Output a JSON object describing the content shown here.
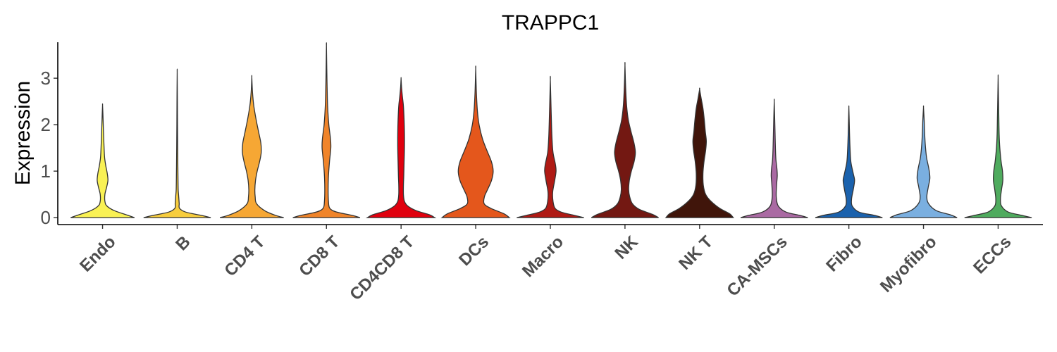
{
  "chart_data": {
    "type": "violin",
    "title": "TRAPPC1",
    "xlabel": "",
    "ylabel": "Expression",
    "ylim": [
      -0.15,
      3.85
    ],
    "yticks": [
      0,
      1,
      2,
      3
    ],
    "grid": false,
    "legend": "none",
    "categories": [
      "Endo",
      "B",
      "CD4 T",
      "CD8 T",
      "CD4CD8 T",
      "DCs",
      "Macro",
      "NK",
      "NK T",
      "CA-MSCs",
      "Fibro",
      "Myofibro",
      "ECCs"
    ],
    "series": [
      {
        "category": "Endo",
        "color": "#F9F154",
        "max": 2.42,
        "profile": [
          [
            0,
            0.95
          ],
          [
            0.05,
            0.75
          ],
          [
            0.15,
            0.35
          ],
          [
            0.25,
            0.13
          ],
          [
            0.35,
            0.07
          ],
          [
            0.5,
            0.07
          ],
          [
            0.65,
            0.12
          ],
          [
            0.8,
            0.16
          ],
          [
            0.95,
            0.14
          ],
          [
            1.1,
            0.1
          ],
          [
            1.3,
            0.06
          ],
          [
            1.6,
            0.04
          ],
          [
            1.9,
            0.025
          ],
          [
            2.2,
            0.012
          ],
          [
            2.42,
            0
          ]
        ]
      },
      {
        "category": "B",
        "color": "#F7CD3E",
        "max": 3.13,
        "profile": [
          [
            0,
            1.0
          ],
          [
            0.05,
            0.7
          ],
          [
            0.12,
            0.25
          ],
          [
            0.2,
            0.07
          ],
          [
            0.3,
            0.06
          ],
          [
            0.4,
            0.05
          ],
          [
            0.5,
            0.04
          ],
          [
            0.6,
            0.03
          ],
          [
            0.8,
            0.025
          ],
          [
            1.1,
            0.02
          ],
          [
            1.5,
            0.015
          ],
          [
            2.0,
            0.01
          ],
          [
            2.6,
            0.006
          ],
          [
            3.13,
            0
          ]
        ]
      },
      {
        "category": "CD4 T",
        "color": "#F6A734",
        "max": 3.02,
        "profile": [
          [
            0,
            0.95
          ],
          [
            0.05,
            0.7
          ],
          [
            0.15,
            0.38
          ],
          [
            0.3,
            0.14
          ],
          [
            0.45,
            0.1
          ],
          [
            0.6,
            0.09
          ],
          [
            0.8,
            0.11
          ],
          [
            1.0,
            0.16
          ],
          [
            1.2,
            0.23
          ],
          [
            1.4,
            0.28
          ],
          [
            1.6,
            0.27
          ],
          [
            1.85,
            0.2
          ],
          [
            2.1,
            0.13
          ],
          [
            2.4,
            0.06
          ],
          [
            2.7,
            0.02
          ],
          [
            3.02,
            0
          ]
        ]
      },
      {
        "category": "CD8 T",
        "color": "#F0842A",
        "max": 3.7,
        "profile": [
          [
            0,
            1.0
          ],
          [
            0.05,
            0.75
          ],
          [
            0.12,
            0.3
          ],
          [
            0.2,
            0.1
          ],
          [
            0.35,
            0.06
          ],
          [
            0.6,
            0.05
          ],
          [
            0.9,
            0.06
          ],
          [
            1.2,
            0.09
          ],
          [
            1.5,
            0.13
          ],
          [
            1.7,
            0.12
          ],
          [
            2.0,
            0.07
          ],
          [
            2.4,
            0.035
          ],
          [
            2.8,
            0.02
          ],
          [
            3.2,
            0.01
          ],
          [
            3.7,
            0
          ]
        ]
      },
      {
        "category": "CD4CD8 T",
        "color": "#E0000E",
        "max": 2.99,
        "profile": [
          [
            0,
            1.0
          ],
          [
            0.06,
            0.85
          ],
          [
            0.15,
            0.45
          ],
          [
            0.25,
            0.2
          ],
          [
            0.35,
            0.1
          ],
          [
            0.5,
            0.07
          ],
          [
            0.7,
            0.07
          ],
          [
            0.9,
            0.08
          ],
          [
            1.2,
            0.09
          ],
          [
            1.5,
            0.1
          ],
          [
            1.8,
            0.1
          ],
          [
            2.1,
            0.09
          ],
          [
            2.4,
            0.07
          ],
          [
            2.6,
            0.04
          ],
          [
            2.8,
            0.015
          ],
          [
            2.99,
            0
          ]
        ]
      },
      {
        "category": "DCs",
        "color": "#E4571C",
        "max": 3.2,
        "profile": [
          [
            0,
            1.0
          ],
          [
            0.08,
            0.85
          ],
          [
            0.2,
            0.45
          ],
          [
            0.3,
            0.25
          ],
          [
            0.45,
            0.26
          ],
          [
            0.6,
            0.35
          ],
          [
            0.8,
            0.47
          ],
          [
            1.0,
            0.52
          ],
          [
            1.2,
            0.47
          ],
          [
            1.45,
            0.33
          ],
          [
            1.7,
            0.2
          ],
          [
            2.0,
            0.1
          ],
          [
            2.3,
            0.05
          ],
          [
            2.7,
            0.02
          ],
          [
            3.2,
            0
          ]
        ]
      },
      {
        "category": "Macro",
        "color": "#AF1A14",
        "max": 2.97,
        "profile": [
          [
            0,
            1.0
          ],
          [
            0.05,
            0.7
          ],
          [
            0.12,
            0.32
          ],
          [
            0.2,
            0.14
          ],
          [
            0.35,
            0.08
          ],
          [
            0.55,
            0.07
          ],
          [
            0.8,
            0.13
          ],
          [
            1.0,
            0.17
          ],
          [
            1.15,
            0.15
          ],
          [
            1.4,
            0.08
          ],
          [
            1.7,
            0.05
          ],
          [
            2.0,
            0.035
          ],
          [
            2.4,
            0.02
          ],
          [
            2.97,
            0
          ]
        ]
      },
      {
        "category": "NK",
        "color": "#731812",
        "max": 3.28,
        "profile": [
          [
            0,
            1.0
          ],
          [
            0.07,
            0.82
          ],
          [
            0.18,
            0.42
          ],
          [
            0.3,
            0.22
          ],
          [
            0.45,
            0.14
          ],
          [
            0.6,
            0.11
          ],
          [
            0.8,
            0.13
          ],
          [
            1.0,
            0.19
          ],
          [
            1.2,
            0.27
          ],
          [
            1.4,
            0.31
          ],
          [
            1.6,
            0.27
          ],
          [
            1.85,
            0.18
          ],
          [
            2.1,
            0.1
          ],
          [
            2.4,
            0.05
          ],
          [
            2.8,
            0.02
          ],
          [
            3.28,
            0
          ]
        ]
      },
      {
        "category": "NK T",
        "color": "#40150A",
        "max": 2.76,
        "profile": [
          [
            0,
            1.0
          ],
          [
            0.08,
            0.9
          ],
          [
            0.2,
            0.6
          ],
          [
            0.35,
            0.34
          ],
          [
            0.5,
            0.18
          ],
          [
            0.7,
            0.11
          ],
          [
            0.95,
            0.1
          ],
          [
            1.2,
            0.13
          ],
          [
            1.45,
            0.18
          ],
          [
            1.65,
            0.2
          ],
          [
            1.85,
            0.17
          ],
          [
            2.1,
            0.14
          ],
          [
            2.35,
            0.1
          ],
          [
            2.55,
            0.05
          ],
          [
            2.76,
            0
          ]
        ]
      },
      {
        "category": "CA-MSCs",
        "color": "#AA6AA3",
        "max": 2.5,
        "profile": [
          [
            0,
            1.0
          ],
          [
            0.05,
            0.75
          ],
          [
            0.12,
            0.35
          ],
          [
            0.25,
            0.12
          ],
          [
            0.45,
            0.06
          ],
          [
            0.7,
            0.07
          ],
          [
            0.9,
            0.09
          ],
          [
            1.05,
            0.08
          ],
          [
            1.25,
            0.05
          ],
          [
            1.5,
            0.035
          ],
          [
            1.8,
            0.025
          ],
          [
            2.1,
            0.015
          ],
          [
            2.5,
            0
          ]
        ]
      },
      {
        "category": "Fibro",
        "color": "#1B62AD",
        "max": 2.37,
        "profile": [
          [
            0,
            1.0
          ],
          [
            0.05,
            0.75
          ],
          [
            0.12,
            0.3
          ],
          [
            0.25,
            0.1
          ],
          [
            0.4,
            0.08
          ],
          [
            0.6,
            0.13
          ],
          [
            0.8,
            0.17
          ],
          [
            0.95,
            0.13
          ],
          [
            1.2,
            0.06
          ],
          [
            1.5,
            0.035
          ],
          [
            1.8,
            0.02
          ],
          [
            2.1,
            0.01
          ],
          [
            2.37,
            0
          ]
        ]
      },
      {
        "category": "Myofibro",
        "color": "#7AAFE0",
        "max": 2.37,
        "profile": [
          [
            0,
            1.0
          ],
          [
            0.06,
            0.8
          ],
          [
            0.15,
            0.38
          ],
          [
            0.3,
            0.15
          ],
          [
            0.45,
            0.1
          ],
          [
            0.65,
            0.14
          ],
          [
            0.85,
            0.19
          ],
          [
            1.05,
            0.16
          ],
          [
            1.3,
            0.09
          ],
          [
            1.6,
            0.05
          ],
          [
            1.9,
            0.03
          ],
          [
            2.1,
            0.02
          ],
          [
            2.37,
            0
          ]
        ]
      },
      {
        "category": "ECCs",
        "color": "#4FAB5E",
        "max": 3.02,
        "profile": [
          [
            0,
            1.0
          ],
          [
            0.05,
            0.7
          ],
          [
            0.12,
            0.3
          ],
          [
            0.25,
            0.1
          ],
          [
            0.4,
            0.07
          ],
          [
            0.6,
            0.1
          ],
          [
            0.8,
            0.14
          ],
          [
            1.0,
            0.13
          ],
          [
            1.2,
            0.09
          ],
          [
            1.5,
            0.05
          ],
          [
            1.8,
            0.03
          ],
          [
            2.2,
            0.02
          ],
          [
            2.6,
            0.01
          ],
          [
            3.02,
            0
          ]
        ]
      }
    ]
  }
}
